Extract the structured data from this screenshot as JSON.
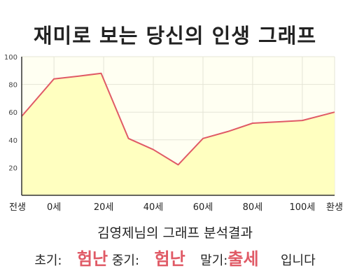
{
  "page": {
    "title": "재미로 보는 당신의 인생 그래프",
    "subtitle": "김영제님의 그래프 분석결과"
  },
  "result": {
    "early_label": "초기:",
    "early_value": "험난",
    "mid_label": "중기:",
    "mid_value": "험난",
    "late_label": "말기:",
    "late_value": "출세",
    "suffix": "입니다"
  },
  "colors": {
    "fill": "#ffffc0",
    "plot_bg": "#fffff2",
    "line": "#e05a66",
    "accent_text": "#e05a66"
  },
  "chart_data": {
    "type": "area",
    "title": "재미로 보는 당신의 인생 그래프",
    "xlabel": "",
    "ylabel": "",
    "x_tick_labels": [
      "전생",
      "0세",
      "20세",
      "40세",
      "60세",
      "80세",
      "100세",
      "환생"
    ],
    "x_domain_label_values": [
      -13,
      0,
      20,
      40,
      60,
      80,
      100,
      113
    ],
    "xlim": [
      -13,
      113
    ],
    "ylim": [
      0,
      100
    ],
    "y_ticks": [
      20,
      40,
      60,
      80,
      100
    ],
    "grid": true,
    "series": [
      {
        "x": [
          -13,
          0,
          10,
          19,
          30,
          40,
          50,
          60,
          70,
          80,
          90,
          100,
          113
        ],
        "values": [
          57,
          84,
          86,
          88,
          41,
          33,
          22,
          41,
          46,
          52,
          53,
          54,
          60
        ]
      }
    ]
  }
}
